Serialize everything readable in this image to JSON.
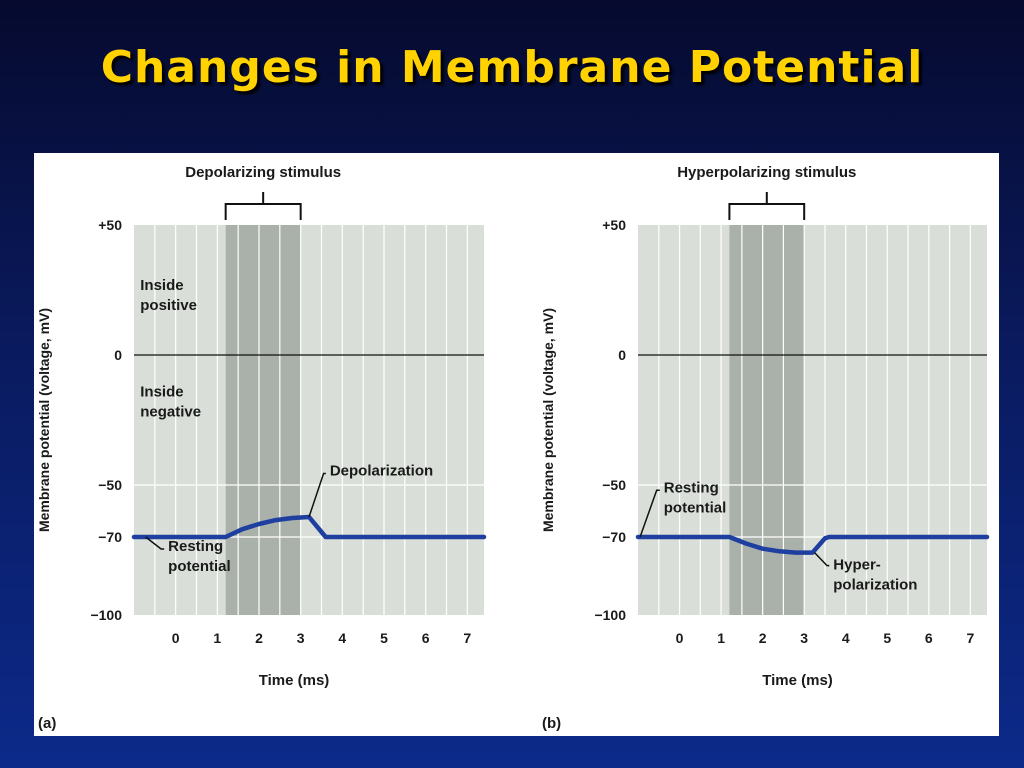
{
  "slide": {
    "title": "Changes in Membrane Potential",
    "title_color": "#ffd200"
  },
  "colors": {
    "plot_bg": "#d9dfd8",
    "stimulus_band": "#aab1aa",
    "trace": "#1f3fa0",
    "text": "#1a1a1a"
  },
  "chart_data": [
    {
      "type": "line",
      "panel_label": "(a)",
      "stimulus_label": "Depolarizing stimulus",
      "stimulus_range": [
        1.2,
        3
      ],
      "xlabel": "Time (ms)",
      "ylabel": "Membrane potential (voltage, mV)",
      "xlim": [
        -1,
        7.4
      ],
      "ylim": [
        -100,
        50
      ],
      "x_ticks": [
        0,
        1,
        2,
        3,
        4,
        5,
        6,
        7
      ],
      "y_ticks": [
        {
          "value": 50,
          "label": "+50"
        },
        {
          "value": 0,
          "label": "0"
        },
        {
          "value": -50,
          "label": "−50"
        },
        {
          "value": -70,
          "label": "−70"
        },
        {
          "value": -100,
          "label": "−100"
        }
      ],
      "grid": true,
      "zero_line": 0,
      "region_labels": [
        {
          "lines": [
            "Inside",
            "positive"
          ],
          "x": -0.85,
          "y": 25
        },
        {
          "lines": [
            "Inside",
            "negative"
          ],
          "x": -0.85,
          "y": -16
        }
      ],
      "series": [
        {
          "x": [
            -1,
            0,
            1,
            1.2,
            1.6,
            2.0,
            2.4,
            2.8,
            3.0,
            3.2,
            3.6,
            4.0,
            5,
            6,
            7.4
          ],
          "y": [
            -70,
            -70,
            -70,
            -70,
            -67,
            -65,
            -63.5,
            -62.7,
            -62.5,
            -62.3,
            -70,
            -70,
            -70,
            -70,
            -70
          ]
        }
      ],
      "annotations": [
        {
          "lines": [
            "Depolarization"
          ],
          "point": [
            3.2,
            -62.3
          ],
          "elbow": [
            3.55,
            -45.6
          ],
          "text_at": [
            3.7,
            -44.5
          ]
        },
        {
          "lines": [
            "Resting",
            "potential"
          ],
          "point": [
            -0.72,
            -70
          ],
          "elbow": [
            -0.35,
            -74.6
          ],
          "text_at": [
            -0.18,
            -73.5
          ]
        }
      ]
    },
    {
      "type": "line",
      "panel_label": "(b)",
      "stimulus_label": "Hyperpolarizing stimulus",
      "stimulus_range": [
        1.2,
        3
      ],
      "xlabel": "Time (ms)",
      "ylabel": "Membrane potential (voltage, mV)",
      "xlim": [
        -1,
        7.4
      ],
      "ylim": [
        -100,
        50
      ],
      "x_ticks": [
        0,
        1,
        2,
        3,
        4,
        5,
        6,
        7
      ],
      "y_ticks": [
        {
          "value": 50,
          "label": "+50"
        },
        {
          "value": 0,
          "label": "0"
        },
        {
          "value": -50,
          "label": "−50"
        },
        {
          "value": -70,
          "label": "−70"
        },
        {
          "value": -100,
          "label": "−100"
        }
      ],
      "grid": true,
      "zero_line": 0,
      "region_labels": [],
      "series": [
        {
          "x": [
            -1,
            0,
            1,
            1.2,
            1.6,
            2.0,
            2.4,
            2.8,
            3.0,
            3.2,
            3.5,
            3.6,
            4.0,
            5,
            6,
            7.4
          ],
          "y": [
            -70,
            -70,
            -70,
            -70,
            -72.5,
            -74.5,
            -75.5,
            -76,
            -76,
            -76,
            -70.5,
            -70,
            -70,
            -70,
            -70,
            -70
          ]
        }
      ],
      "annotations": [
        {
          "lines": [
            "Resting",
            "potential"
          ],
          "point": [
            -0.95,
            -70
          ],
          "elbow": [
            -0.55,
            -52
          ],
          "text_at": [
            -0.38,
            -51
          ]
        },
        {
          "lines": [
            "Hyper-",
            "polarization"
          ],
          "point": [
            3.25,
            -76
          ],
          "elbow": [
            3.55,
            -81
          ],
          "text_at": [
            3.7,
            -80.5
          ]
        }
      ]
    }
  ]
}
